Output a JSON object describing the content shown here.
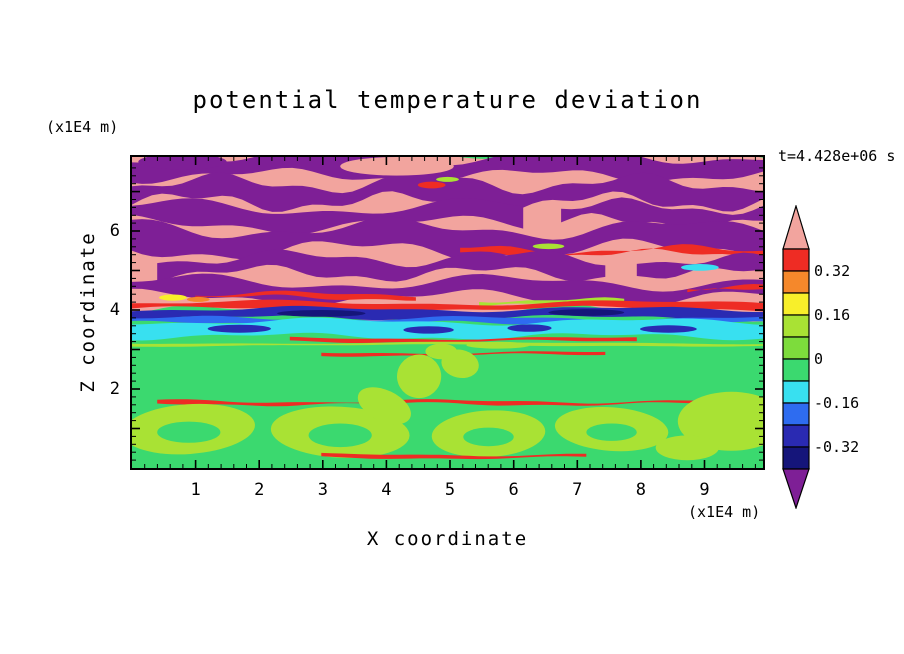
{
  "chart_data": {
    "type": "heatmap",
    "title": "potential temperature deviation",
    "xlabel": "X coordinate",
    "ylabel": "Z coordinate",
    "x_unit_label": "(x1E4 m)",
    "y_unit_label": "(x1E4 m)",
    "timestamp": "t=4.428e+06 s",
    "x_ticks": [
      1,
      2,
      3,
      4,
      5,
      6,
      7,
      8,
      9
    ],
    "y_ticks": [
      2,
      4,
      6
    ],
    "xlim": [
      0,
      9.92
    ],
    "ylim": [
      0,
      7.875
    ],
    "x_minor_step": 0.2,
    "y_minor_step": 0.2,
    "grid": false,
    "legend_position": "right",
    "value_range": [
      -0.4,
      0.4
    ],
    "band_width": 0.08,
    "palette": {
      "pink": "#f2a49e",
      "red": "#ee2c24",
      "orange": "#f5882b",
      "yellow": "#f8ef2a",
      "greenyellow": "#a9e234",
      "lightgreen": "#7ddc3c",
      "green": "#3bd96f",
      "cyan": "#38e0f0",
      "blue": "#2e6cf0",
      "navy": "#2a2ab2",
      "darknavy": "#15157a",
      "purple": "#7e1f96"
    },
    "colorbar": {
      "labels": [
        "0.32",
        "0.16",
        "0",
        "-0.16",
        "-0.32"
      ],
      "band_colors": [
        "red",
        "orange",
        "yellow",
        "greenyellow",
        "lightgreen",
        "green",
        "cyan",
        "blue",
        "navy",
        "darknavy"
      ],
      "arrow_top_color": "pink",
      "arrow_bottom_color": "purple"
    },
    "field_layers": [
      {
        "t": "rect",
        "c": "green",
        "x": 0,
        "y": 0,
        "w": 1,
        "h": 1
      },
      {
        "t": "wave",
        "c": "pink",
        "y": 0.24,
        "th": 0.52,
        "amp": 0.02,
        "wl": 0.55,
        "ph": 2.0
      },
      {
        "t": "wave",
        "c": "purple",
        "y": 0.03,
        "th": 0.06,
        "amp": 0.018,
        "wl": 0.42,
        "ph": 0.5
      },
      {
        "t": "blob",
        "c": "purple",
        "cx": 0.08,
        "cy": 0.015,
        "rx": 0.07,
        "ry": 0.025
      },
      {
        "t": "blob",
        "c": "pink",
        "cx": 0.42,
        "cy": 0.03,
        "rx": 0.09,
        "ry": 0.03
      },
      {
        "t": "wave",
        "c": "purple",
        "y": 0.115,
        "th": 0.06,
        "amp": 0.024,
        "wl": 0.33,
        "ph": 2.1
      },
      {
        "t": "blob",
        "c": "red",
        "cx": 0.475,
        "cy": 0.09,
        "rx": 0.022,
        "ry": 0.011
      },
      {
        "t": "blob",
        "c": "greenyellow",
        "cx": 0.5,
        "cy": 0.072,
        "rx": 0.018,
        "ry": 0.008
      },
      {
        "t": "wave",
        "c": "purple",
        "y": 0.19,
        "th": 0.055,
        "amp": 0.022,
        "wl": 0.5,
        "ph": 4.0,
        "x1": 0.62
      },
      {
        "t": "wave",
        "c": "purple",
        "y": 0.185,
        "th": 0.05,
        "amp": 0.02,
        "wl": 0.3,
        "ph": 1.0,
        "x0": 0.68
      },
      {
        "t": "wave",
        "c": "purple",
        "y": 0.265,
        "th": 0.07,
        "amp": 0.026,
        "wl": 0.45,
        "ph": 5.2
      },
      {
        "t": "wave",
        "c": "red",
        "y": 0.305,
        "th": 0.014,
        "amp": 0.012,
        "wl": 0.34,
        "ph": 1.1,
        "x0": 0.52
      },
      {
        "t": "blob",
        "c": "greenyellow",
        "cx": 0.66,
        "cy": 0.287,
        "rx": 0.025,
        "ry": 0.009
      },
      {
        "t": "wave",
        "c": "purple",
        "y": 0.35,
        "th": 0.05,
        "amp": 0.02,
        "wl": 0.36,
        "ph": 0.3,
        "x0": 0.04,
        "x1": 0.75
      },
      {
        "t": "wave",
        "c": "purple",
        "y": 0.352,
        "th": 0.045,
        "amp": 0.016,
        "wl": 0.3,
        "ph": 2.8,
        "x0": 0.8
      },
      {
        "t": "blob",
        "c": "cyan",
        "cx": 0.9,
        "cy": 0.355,
        "rx": 0.03,
        "ry": 0.011
      },
      {
        "t": "wave",
        "c": "purple",
        "y": 0.428,
        "th": 0.05,
        "amp": 0.02,
        "wl": 0.5,
        "ph": 3.6
      },
      {
        "t": "wave",
        "c": "red",
        "y": 0.447,
        "th": 0.012,
        "amp": 0.008,
        "wl": 0.4,
        "ph": 0.7,
        "x0": 0.1,
        "x1": 0.45
      },
      {
        "t": "wave",
        "c": "red",
        "y": 0.425,
        "th": 0.012,
        "amp": 0.008,
        "wl": 0.3,
        "ph": 2.4,
        "x0": 0.88
      },
      {
        "t": "blob",
        "c": "yellow",
        "cx": 0.065,
        "cy": 0.452,
        "rx": 0.022,
        "ry": 0.01
      },
      {
        "t": "blob",
        "c": "orange",
        "cx": 0.105,
        "cy": 0.458,
        "rx": 0.018,
        "ry": 0.008
      },
      {
        "t": "wave",
        "c": "greenyellow",
        "y": 0.466,
        "th": 0.012,
        "amp": 0.006,
        "wl": 0.3,
        "ph": 1.8,
        "x0": 0.55,
        "x1": 0.78
      },
      {
        "t": "wave",
        "c": "red",
        "y": 0.479,
        "th": 0.02,
        "amp": 0.007,
        "wl": 0.6,
        "ph": 2.5
      },
      {
        "t": "wave",
        "c": "navy",
        "y": 0.503,
        "th": 0.028,
        "amp": 0.007,
        "wl": 0.5,
        "ph": 1.2
      },
      {
        "t": "blob",
        "c": "darknavy",
        "cx": 0.3,
        "cy": 0.503,
        "rx": 0.07,
        "ry": 0.011
      },
      {
        "t": "blob",
        "c": "darknavy",
        "cx": 0.72,
        "cy": 0.5,
        "rx": 0.06,
        "ry": 0.011
      },
      {
        "t": "wave",
        "c": "blue",
        "y": 0.527,
        "th": 0.016,
        "amp": 0.006,
        "wl": 0.45,
        "ph": 3.3
      },
      {
        "t": "wave",
        "c": "cyan",
        "y": 0.553,
        "th": 0.048,
        "amp": 0.009,
        "wl": 0.5,
        "ph": 0.8
      },
      {
        "t": "blob",
        "c": "navy",
        "cx": 0.17,
        "cy": 0.552,
        "rx": 0.05,
        "ry": 0.013
      },
      {
        "t": "blob",
        "c": "navy",
        "cx": 0.47,
        "cy": 0.556,
        "rx": 0.04,
        "ry": 0.012
      },
      {
        "t": "blob",
        "c": "navy",
        "cx": 0.63,
        "cy": 0.55,
        "rx": 0.035,
        "ry": 0.012
      },
      {
        "t": "blob",
        "c": "navy",
        "cx": 0.85,
        "cy": 0.553,
        "rx": 0.045,
        "ry": 0.012
      },
      {
        "t": "wave",
        "c": "red",
        "y": 0.588,
        "th": 0.01,
        "amp": 0.004,
        "wl": 0.5,
        "ph": 1.9,
        "x0": 0.25,
        "x1": 0.8
      },
      {
        "t": "wave",
        "c": "greenyellow",
        "y": 0.602,
        "th": 0.008,
        "amp": 0.003,
        "wl": 0.8,
        "ph": 0.4
      },
      {
        "t": "wave",
        "c": "red",
        "y": 0.633,
        "th": 0.008,
        "amp": 0.004,
        "wl": 0.5,
        "ph": 2.2,
        "x0": 0.3,
        "x1": 0.75
      },
      {
        "t": "blob",
        "c": "greenyellow",
        "cx": 0.58,
        "cy": 0.605,
        "rx": 0.05,
        "ry": 0.011
      },
      {
        "t": "blob",
        "c": "greenyellow",
        "cx": 0.49,
        "cy": 0.625,
        "rx": 0.025,
        "ry": 0.025
      },
      {
        "t": "blob",
        "c": "greenyellow",
        "cx": 0.52,
        "cy": 0.665,
        "rx": 0.03,
        "ry": 0.045,
        "rot": 12
      },
      {
        "t": "blob",
        "c": "greenyellow",
        "cx": 0.455,
        "cy": 0.705,
        "rx": 0.035,
        "ry": 0.07,
        "rot": -8
      },
      {
        "t": "wave",
        "c": "red",
        "y": 0.79,
        "th": 0.009,
        "amp": 0.005,
        "wl": 0.45,
        "ph": 4.1,
        "x0": 0.04,
        "x1": 0.96
      },
      {
        "t": "blob",
        "c": "greenyellow",
        "cx": 0.09,
        "cy": 0.875,
        "rx": 0.105,
        "ry": 0.08,
        "rot": -4
      },
      {
        "t": "blob",
        "c": "greenyellow",
        "cx": 0.33,
        "cy": 0.885,
        "rx": 0.11,
        "ry": 0.082,
        "rot": 3
      },
      {
        "t": "blob",
        "c": "greenyellow",
        "cx": 0.4,
        "cy": 0.8,
        "rx": 0.045,
        "ry": 0.05,
        "rot": 25
      },
      {
        "t": "blob",
        "c": "greenyellow",
        "cx": 0.565,
        "cy": 0.89,
        "rx": 0.09,
        "ry": 0.075,
        "rot": -3
      },
      {
        "t": "blob",
        "c": "greenyellow",
        "cx": 0.76,
        "cy": 0.875,
        "rx": 0.09,
        "ry": 0.07,
        "rot": 4
      },
      {
        "t": "blob",
        "c": "greenyellow",
        "cx": 0.95,
        "cy": 0.85,
        "rx": 0.085,
        "ry": 0.095
      },
      {
        "t": "blob",
        "c": "greenyellow",
        "cx": 0.88,
        "cy": 0.935,
        "rx": 0.05,
        "ry": 0.04
      },
      {
        "t": "blob",
        "c": "green",
        "cx": 0.09,
        "cy": 0.885,
        "rx": 0.05,
        "ry": 0.034
      },
      {
        "t": "blob",
        "c": "green",
        "cx": 0.33,
        "cy": 0.895,
        "rx": 0.05,
        "ry": 0.038
      },
      {
        "t": "blob",
        "c": "green",
        "cx": 0.565,
        "cy": 0.9,
        "rx": 0.04,
        "ry": 0.03
      },
      {
        "t": "blob",
        "c": "green",
        "cx": 0.76,
        "cy": 0.885,
        "rx": 0.04,
        "ry": 0.028
      },
      {
        "t": "wave",
        "c": "red",
        "y": 0.962,
        "th": 0.01,
        "amp": 0.004,
        "wl": 0.5,
        "ph": 0.9,
        "x0": 0.3,
        "x1": 0.72
      }
    ]
  }
}
